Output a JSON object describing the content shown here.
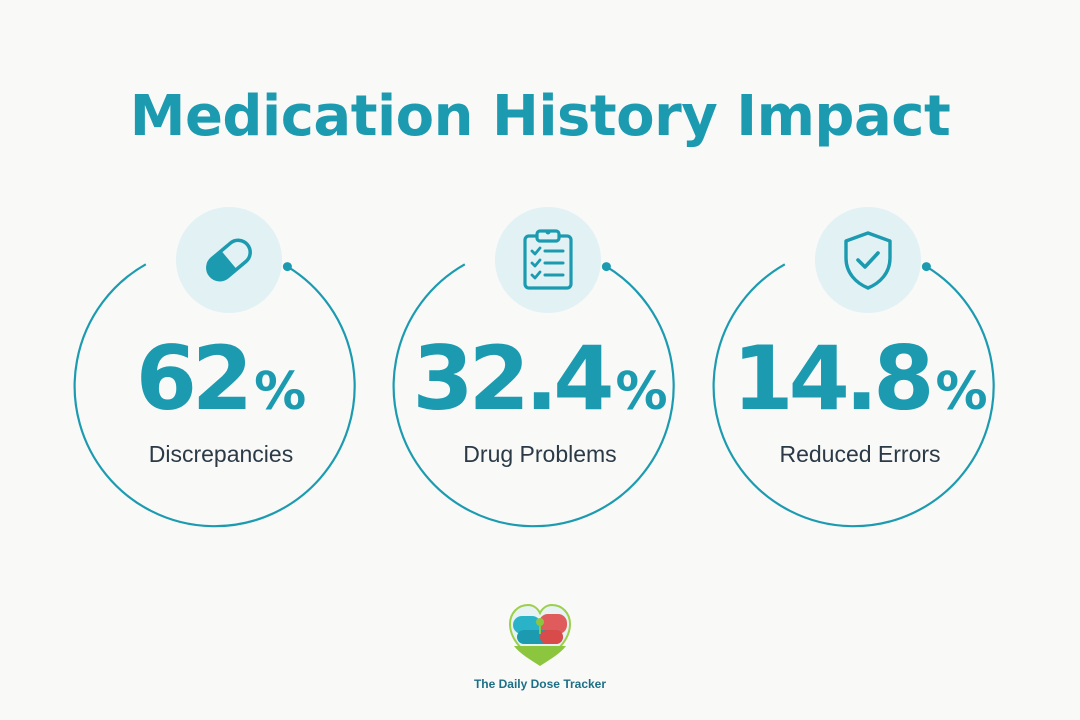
{
  "title": "Medication History Impact",
  "accent_color": "#1c9bb0",
  "stats": [
    {
      "value": "62",
      "unit": "%",
      "label": "Discrepancies",
      "icon": "capsule-icon"
    },
    {
      "value": "32.4",
      "unit": "%",
      "label": "Drug Problems",
      "icon": "clipboard-checklist-icon"
    },
    {
      "value": "14.8",
      "unit": "%",
      "label": "Reduced Errors",
      "icon": "shield-check-icon"
    }
  ],
  "brand": {
    "name": "The Daily Dose Tracker",
    "logo": "heart-pills-logo"
  }
}
